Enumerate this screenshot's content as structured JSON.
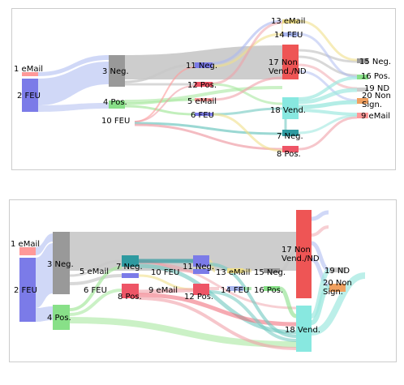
{
  "colors": {
    "email": "#ff9999",
    "feu": "#7b7be8",
    "neg": "#999999",
    "pos": "#88e088",
    "neg_teal": "#2e9aa0",
    "pos_red": "#ee5566",
    "non_vend": "#ee5555",
    "vend": "#88e8e0",
    "nd": "#cccccc",
    "non_sign": "#f0a060",
    "gray_flow": "#c8c8c8",
    "yellow": "#f0e08a",
    "blue_flow": "#aab8f0",
    "pink": "#f0a0a8",
    "green_flow": "#a8e8a0",
    "teal_flow": "#70c8c0",
    "cyan_flow": "#a0e8e0"
  },
  "top_diagram": {
    "nodes": [
      {
        "id": "1",
        "label": "1 eMail"
      },
      {
        "id": "2",
        "label": "2 FEU"
      },
      {
        "id": "3",
        "label": "3 Neg."
      },
      {
        "id": "4",
        "label": "4 Pos."
      },
      {
        "id": "10",
        "label": "10 FEU"
      },
      {
        "id": "11",
        "label": "11 Neg."
      },
      {
        "id": "12",
        "label": "12 Pos."
      },
      {
        "id": "5",
        "label": "5 eMail"
      },
      {
        "id": "6",
        "label": "6 FEU"
      },
      {
        "id": "13",
        "label": "13 eMail"
      },
      {
        "id": "14",
        "label": "14 FEU"
      },
      {
        "id": "17",
        "label": "17 Non Vend./ND"
      },
      {
        "id": "18",
        "label": "18 Vend."
      },
      {
        "id": "7",
        "label": "7 Neg."
      },
      {
        "id": "8",
        "label": "8 Pos."
      },
      {
        "id": "15",
        "label": "15 Neg."
      },
      {
        "id": "16",
        "label": "16 Pos."
      },
      {
        "id": "19",
        "label": "19 ND"
      },
      {
        "id": "20",
        "label": "20 Non Sign."
      },
      {
        "id": "9",
        "label": "9 eMail"
      }
    ]
  },
  "bottom_diagram": {
    "nodes": [
      {
        "id": "1",
        "label": "1 eMail"
      },
      {
        "id": "2",
        "label": "2 FEU"
      },
      {
        "id": "3",
        "label": "3 Neg."
      },
      {
        "id": "4",
        "label": "4 Pos."
      },
      {
        "id": "5",
        "label": "5 eMail"
      },
      {
        "id": "6",
        "label": "6 FEU"
      },
      {
        "id": "7",
        "label": "7 Neg."
      },
      {
        "id": "8",
        "label": "8 Pos."
      },
      {
        "id": "10",
        "label": "10 FEU"
      },
      {
        "id": "9",
        "label": "9 eMail"
      },
      {
        "id": "11",
        "label": "11 Neg."
      },
      {
        "id": "12",
        "label": "12 Pos."
      },
      {
        "id": "13",
        "label": "13 eMail"
      },
      {
        "id": "14",
        "label": "14 FEU"
      },
      {
        "id": "15",
        "label": "15 Neg."
      },
      {
        "id": "16",
        "label": "16 Pos."
      },
      {
        "id": "17",
        "label": "17 Non Vend./ND"
      },
      {
        "id": "18",
        "label": "18 Vend."
      },
      {
        "id": "19",
        "label": "19 ND"
      },
      {
        "id": "20",
        "label": "20 Non Sign."
      }
    ]
  }
}
